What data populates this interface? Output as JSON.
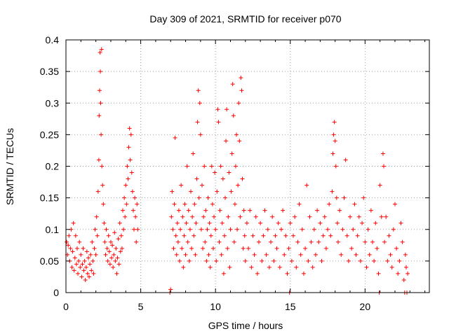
{
  "chart_data": {
    "type": "scatter",
    "title": "Day 309 of 2021, SRMTID for receiver p070",
    "xlabel": "GPS time / hours",
    "ylabel": "SRMTID / TECUs",
    "xlim": [
      0,
      24.3
    ],
    "ylim": [
      0,
      0.4
    ],
    "xticks": [
      0,
      5,
      10,
      15,
      20
    ],
    "xtick_labels": [
      "0",
      "5",
      "10",
      "15",
      "20"
    ],
    "yticks": [
      0,
      0.05,
      0.1,
      0.15,
      0.2,
      0.25,
      0.3,
      0.35,
      0.4
    ],
    "ytick_labels": [
      "0",
      "0.05",
      "0.1",
      "0.15",
      "0.2",
      "0.25",
      "0.3",
      "0.35",
      "0.4"
    ],
    "grid": true,
    "marker": "plus",
    "series_color": "#ff0000",
    "series": [
      {
        "name": "SRMTID",
        "points": [
          [
            0.05,
            0.08
          ],
          [
            0.1,
            0.06
          ],
          [
            0.15,
            0.075
          ],
          [
            0.2,
            0.09
          ],
          [
            0.25,
            0.05
          ],
          [
            0.3,
            0.07
          ],
          [
            0.35,
            0.1
          ],
          [
            0.4,
            0.04
          ],
          [
            0.45,
            0.065
          ],
          [
            0.5,
            0.11
          ],
          [
            0.55,
            0.035
          ],
          [
            0.6,
            0.055
          ],
          [
            0.65,
            0.09
          ],
          [
            0.7,
            0.045
          ],
          [
            0.75,
            0.07
          ],
          [
            0.8,
            0.03
          ],
          [
            0.85,
            0.05
          ],
          [
            0.9,
            0.08
          ],
          [
            0.95,
            0.04
          ],
          [
            1.0,
            0.06
          ],
          [
            1.05,
            0.025
          ],
          [
            1.1,
            0.045
          ],
          [
            1.15,
            0.07
          ],
          [
            1.2,
            0.035
          ],
          [
            1.25,
            0.05
          ],
          [
            1.3,
            0.02
          ],
          [
            1.35,
            0.04
          ],
          [
            1.4,
            0.065
          ],
          [
            1.45,
            0.03
          ],
          [
            1.5,
            0.055
          ],
          [
            1.55,
            0.025
          ],
          [
            1.6,
            0.045
          ],
          [
            1.65,
            0.06
          ],
          [
            1.7,
            0.035
          ],
          [
            1.75,
            0.08
          ],
          [
            1.8,
            0.05
          ],
          [
            1.85,
            0.03
          ],
          [
            1.9,
            0.07
          ],
          [
            1.95,
            0.1
          ],
          [
            2.0,
            0.06
          ],
          [
            2.05,
            0.12
          ],
          [
            2.1,
            0.09
          ],
          [
            2.15,
            0.16
          ],
          [
            2.2,
            0.21
          ],
          [
            2.22,
            0.28
          ],
          [
            2.25,
            0.32
          ],
          [
            2.28,
            0.38
          ],
          [
            2.3,
            0.35
          ],
          [
            2.32,
            0.3
          ],
          [
            2.35,
            0.25
          ],
          [
            2.38,
            0.385
          ],
          [
            2.4,
            0.2
          ],
          [
            2.45,
            0.17
          ],
          [
            2.5,
            0.14
          ],
          [
            2.55,
            0.11
          ],
          [
            2.6,
            0.08
          ],
          [
            2.65,
            0.06
          ],
          [
            2.7,
            0.1
          ],
          [
            2.75,
            0.07
          ],
          [
            2.8,
            0.05
          ],
          [
            2.85,
            0.09
          ],
          [
            2.9,
            0.065
          ],
          [
            2.95,
            0.045
          ],
          [
            3.0,
            0.08
          ],
          [
            3.05,
            0.055
          ],
          [
            3.1,
            0.075
          ],
          [
            3.15,
            0.04
          ],
          [
            3.2,
            0.06
          ],
          [
            3.25,
            0.095
          ],
          [
            3.3,
            0.05
          ],
          [
            3.35,
            0.07
          ],
          [
            3.4,
            0.03
          ],
          [
            3.45,
            0.055
          ],
          [
            3.5,
            0.085
          ],
          [
            3.55,
            0.045
          ],
          [
            3.6,
            0.11
          ],
          [
            3.65,
            0.065
          ],
          [
            3.7,
            0.09
          ],
          [
            3.75,
            0.07
          ],
          [
            3.8,
            0.13
          ],
          [
            3.85,
            0.1
          ],
          [
            3.9,
            0.15
          ],
          [
            3.95,
            0.12
          ],
          [
            4.0,
            0.17
          ],
          [
            4.05,
            0.14
          ],
          [
            4.1,
            0.2
          ],
          [
            4.15,
            0.18
          ],
          [
            4.2,
            0.23
          ],
          [
            4.25,
            0.26
          ],
          [
            4.3,
            0.21
          ],
          [
            4.35,
            0.25
          ],
          [
            4.4,
            0.19
          ],
          [
            4.45,
            0.16
          ],
          [
            4.5,
            0.13
          ],
          [
            4.55,
            0.1
          ],
          [
            4.6,
            0.15
          ],
          [
            4.65,
            0.12
          ],
          [
            4.7,
            0.08
          ],
          [
            4.75,
            0.14
          ],
          [
            4.8,
            0.1
          ],
          [
            6.95,
            0.0
          ],
          [
            7.0,
            0.005
          ],
          [
            7.05,
            0.12
          ],
          [
            7.1,
            0.16
          ],
          [
            7.15,
            0.1
          ],
          [
            7.2,
            0.07
          ],
          [
            7.25,
            0.14
          ],
          [
            7.3,
            0.245
          ],
          [
            7.35,
            0.09
          ],
          [
            7.4,
            0.06
          ],
          [
            7.45,
            0.11
          ],
          [
            7.5,
            0.08
          ],
          [
            7.55,
            0.13
          ],
          [
            7.6,
            0.05
          ],
          [
            7.65,
            0.1
          ],
          [
            7.7,
            0.17
          ],
          [
            7.75,
            0.07
          ],
          [
            7.8,
            0.12
          ],
          [
            7.85,
            0.04
          ],
          [
            7.9,
            0.09
          ],
          [
            7.95,
            0.14
          ],
          [
            8.0,
            0.06
          ],
          [
            8.05,
            0.11
          ],
          [
            8.1,
            0.2
          ],
          [
            8.15,
            0.08
          ],
          [
            8.2,
            0.13
          ],
          [
            8.25,
            0.05
          ],
          [
            8.3,
            0.1
          ],
          [
            8.35,
            0.16
          ],
          [
            8.4,
            0.07
          ],
          [
            8.45,
            0.12
          ],
          [
            8.5,
            0.22
          ],
          [
            8.55,
            0.09
          ],
          [
            8.6,
            0.14
          ],
          [
            8.65,
            0.06
          ],
          [
            8.7,
            0.11
          ],
          [
            8.75,
            0.18
          ],
          [
            8.8,
            0.27
          ],
          [
            8.85,
            0.32
          ],
          [
            8.9,
            0.15
          ],
          [
            8.95,
            0.3
          ],
          [
            9.0,
            0.25
          ],
          [
            9.05,
            0.1
          ],
          [
            9.1,
            0.17
          ],
          [
            9.15,
            0.07
          ],
          [
            9.2,
            0.12
          ],
          [
            9.25,
            0.2
          ],
          [
            9.3,
            0.08
          ],
          [
            9.35,
            0.13
          ],
          [
            9.4,
            0.05
          ],
          [
            9.45,
            0.1
          ],
          [
            9.5,
            0.15
          ],
          [
            9.55,
            0.06
          ],
          [
            9.6,
            0.11
          ],
          [
            9.65,
            0.04
          ],
          [
            9.7,
            0.09
          ],
          [
            9.75,
            0.2
          ],
          [
            9.8,
            0.14
          ],
          [
            9.85,
            0.07
          ],
          [
            9.9,
            0.12
          ],
          [
            9.95,
            0.19
          ],
          [
            10.0,
            0.1
          ],
          [
            10.05,
            0.05
          ],
          [
            10.1,
            0.16
          ],
          [
            10.15,
            0.29
          ],
          [
            10.2,
            0.27
          ],
          [
            10.25,
            0.08
          ],
          [
            10.3,
            0.13
          ],
          [
            10.35,
            0.2
          ],
          [
            10.4,
            0.06
          ],
          [
            10.45,
            0.11
          ],
          [
            10.5,
            0.18
          ],
          [
            10.55,
            0.03
          ],
          [
            10.6,
            0.09
          ],
          [
            10.65,
            0.15
          ],
          [
            10.7,
            0.24
          ],
          [
            10.75,
            0.29
          ],
          [
            10.8,
            0.07
          ],
          [
            10.85,
            0.12
          ],
          [
            10.9,
            0.19
          ],
          [
            10.95,
            0.04
          ],
          [
            11.0,
            0.1
          ],
          [
            11.05,
            0.16
          ],
          [
            11.1,
            0.22
          ],
          [
            11.15,
            0.33
          ],
          [
            11.2,
            0.28
          ],
          [
            11.25,
            0.08
          ],
          [
            11.3,
            0.14
          ],
          [
            11.35,
            0.2
          ],
          [
            11.4,
            0.25
          ],
          [
            11.45,
            0.1
          ],
          [
            11.5,
            0.17
          ],
          [
            11.55,
            0.3
          ],
          [
            11.6,
            0.24
          ],
          [
            11.65,
            0.12
          ],
          [
            11.7,
            0.34
          ],
          [
            11.75,
            0.32
          ],
          [
            11.8,
            0.18
          ],
          [
            11.85,
            0.07
          ],
          [
            11.9,
            0.13
          ],
          [
            11.95,
            0.09
          ],
          [
            12.0,
            0.05
          ],
          [
            12.1,
            0.11
          ],
          [
            12.2,
            0.07
          ],
          [
            12.3,
            0.13
          ],
          [
            12.4,
            0.04
          ],
          [
            12.5,
            0.09
          ],
          [
            12.6,
            0.06
          ],
          [
            12.7,
            0.12
          ],
          [
            12.8,
            0.03
          ],
          [
            12.9,
            0.08
          ],
          [
            13.0,
            0.11
          ],
          [
            13.1,
            0.05
          ],
          [
            13.2,
            0.09
          ],
          [
            13.3,
            0.13
          ],
          [
            13.4,
            0.06
          ],
          [
            13.5,
            0.1
          ],
          [
            13.6,
            0.04
          ],
          [
            13.7,
            0.08
          ],
          [
            13.8,
            0.12
          ],
          [
            13.9,
            0.05
          ],
          [
            14.0,
            0.09
          ],
          [
            14.1,
            0.07
          ],
          [
            14.2,
            0.11
          ],
          [
            14.3,
            0.04
          ],
          [
            14.4,
            0.1
          ],
          [
            14.5,
            0.13
          ],
          [
            14.6,
            0.06
          ],
          [
            14.7,
            0.09
          ],
          [
            14.8,
            0.03
          ],
          [
            14.9,
            0.07
          ],
          [
            14.95,
            0.0
          ],
          [
            15.0,
            0.11
          ],
          [
            15.1,
            0.05
          ],
          [
            15.2,
            0.09
          ],
          [
            15.3,
            0.12
          ],
          [
            15.4,
            0.04
          ],
          [
            15.5,
            0.08
          ],
          [
            15.6,
            0.14
          ],
          [
            15.7,
            0.06
          ],
          [
            15.8,
            0.1
          ],
          [
            15.9,
            0.03
          ],
          [
            16.0,
            0.07
          ],
          [
            16.1,
            0.17
          ],
          [
            16.2,
            0.05
          ],
          [
            16.3,
            0.12
          ],
          [
            16.4,
            0.08
          ],
          [
            16.5,
            0.04
          ],
          [
            16.6,
            0.1
          ],
          [
            16.7,
            0.06
          ],
          [
            16.8,
            0.13
          ],
          [
            16.9,
            0.08
          ],
          [
            17.0,
            0.11
          ],
          [
            17.1,
            0.05
          ],
          [
            17.2,
            0.09
          ],
          [
            17.3,
            0.12
          ],
          [
            17.4,
            0.07
          ],
          [
            17.5,
            0.1
          ],
          [
            17.6,
            0.14
          ],
          [
            17.7,
            0.09
          ],
          [
            17.8,
            0.16
          ],
          [
            17.85,
            0.22
          ],
          [
            17.9,
            0.25
          ],
          [
            17.95,
            0.27
          ],
          [
            18.0,
            0.24
          ],
          [
            18.05,
            0.2
          ],
          [
            18.1,
            0.15
          ],
          [
            18.15,
            0.11
          ],
          [
            18.2,
            0.08
          ],
          [
            18.3,
            0.13
          ],
          [
            18.4,
            0.06
          ],
          [
            18.5,
            0.1
          ],
          [
            18.6,
            0.15
          ],
          [
            18.7,
            0.21
          ],
          [
            18.8,
            0.09
          ],
          [
            18.9,
            0.05
          ],
          [
            19.0,
            0.12
          ],
          [
            19.1,
            0.07
          ],
          [
            19.2,
            0.1
          ],
          [
            19.3,
            0.14
          ],
          [
            19.4,
            0.06
          ],
          [
            19.5,
            0.09
          ],
          [
            19.6,
            0.12
          ],
          [
            19.7,
            0.05
          ],
          [
            19.8,
            0.11
          ],
          [
            19.9,
            0.15
          ],
          [
            20.0,
            0.08
          ],
          [
            20.1,
            0.04
          ],
          [
            20.2,
            0.1
          ],
          [
            20.3,
            0.06
          ],
          [
            20.4,
            0.13
          ],
          [
            20.5,
            0.08
          ],
          [
            20.6,
            0.05
          ],
          [
            20.7,
            0.11
          ],
          [
            20.8,
            0.07
          ],
          [
            20.9,
            0.03
          ],
          [
            20.95,
            0.0
          ],
          [
            21.0,
            0.17
          ],
          [
            21.1,
            0.12
          ],
          [
            21.2,
            0.22
          ],
          [
            21.25,
            0.2
          ],
          [
            21.3,
            0.08
          ],
          [
            21.4,
            0.12
          ],
          [
            21.5,
            0.05
          ],
          [
            21.6,
            0.09
          ],
          [
            21.7,
            0.06
          ],
          [
            21.8,
            0.04
          ],
          [
            21.9,
            0.1
          ],
          [
            22.0,
            0.14
          ],
          [
            22.1,
            0.07
          ],
          [
            22.2,
            0.03
          ],
          [
            22.3,
            0.05
          ],
          [
            22.4,
            0.11
          ],
          [
            22.5,
            0.08
          ],
          [
            22.6,
            0.02
          ],
          [
            22.65,
            0.0
          ],
          [
            22.7,
            0.06
          ],
          [
            22.75,
            0.04
          ],
          [
            22.8,
            0.0
          ],
          [
            22.85,
            0.03
          ]
        ]
      }
    ]
  }
}
